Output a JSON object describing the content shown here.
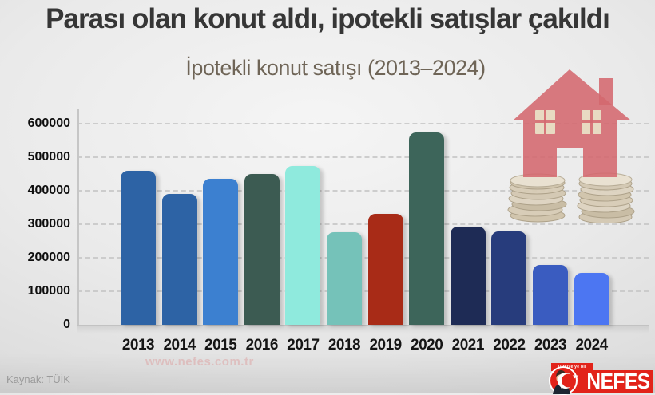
{
  "header": {
    "title": "Parası olan konut aldı, ipotekli satışlar çakıldı",
    "subtitle": "İpotekli konut satışı (2013–2024)"
  },
  "chart_data": {
    "type": "bar",
    "title": "İpotekli konut satışı (2013–2024)",
    "categories": [
      "2013",
      "2014",
      "2015",
      "2016",
      "2017",
      "2018",
      "2019",
      "2020",
      "2021",
      "2022",
      "2023",
      "2024"
    ],
    "values": [
      460000,
      390000,
      435000,
      450000,
      473000,
      277000,
      332000,
      573000,
      294000,
      278000,
      178000,
      154000
    ],
    "bar_colors": [
      "#2d63a5",
      "#2d63a5",
      "#3c80d0",
      "#3c5b52",
      "#8feadd",
      "#75c2b9",
      "#a82b17",
      "#3d655a",
      "#1e2b55",
      "#273c7c",
      "#3a5cc0",
      "#4c76f2"
    ],
    "xlabel": "",
    "ylabel": "",
    "ylim": [
      0,
      600000
    ],
    "yticks": [
      600000,
      500000,
      400000,
      300000,
      200000,
      100000,
      0
    ],
    "grid": "horizontal-dashed",
    "legend": "none",
    "source": "Kaynak: TÜİK"
  },
  "decoration": {
    "illustration": "red house standing on two coin stacks",
    "house_color": "#d4686e",
    "window_color": "#e9dfc6",
    "coin_light": "#ddd3bf",
    "coin_mid": "#d3c7b0",
    "coin_dark": "#c7baa0",
    "coin_rim": "#a99c82"
  },
  "footer": {
    "source": "Kaynak: TÜİK",
    "watermark": "www.nefes.com.tr"
  },
  "logo": {
    "ribbon": "Türkiye'ye bir",
    "name": "NEFES",
    "brand_red": "#e2231a",
    "emblem": "crescent-star-and-portrait"
  }
}
